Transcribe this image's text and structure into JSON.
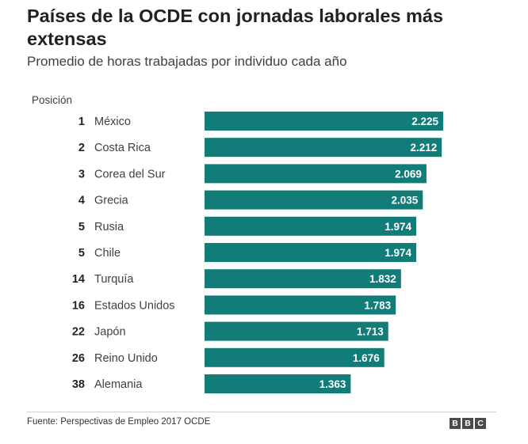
{
  "chart_data": {
    "type": "bar",
    "orientation": "horizontal",
    "title": "Países de la OCDE con jornadas laborales más extensas",
    "subtitle": "Promedio de horas trabajadas por individuo cada año",
    "column_header": "Posición",
    "rows": [
      {
        "rank": "1",
        "country": "México",
        "value": 2225,
        "label": "2.225"
      },
      {
        "rank": "2",
        "country": "Costa Rica",
        "value": 2212,
        "label": "2.212"
      },
      {
        "rank": "3",
        "country": "Corea del Sur",
        "value": 2069,
        "label": "2.069"
      },
      {
        "rank": "4",
        "country": "Grecia",
        "value": 2035,
        "label": "2.035"
      },
      {
        "rank": "5",
        "country": "Rusia",
        "value": 1974,
        "label": "1.974"
      },
      {
        "rank": "5",
        "country": "Chile",
        "value": 1974,
        "label": "1.974"
      },
      {
        "rank": "14",
        "country": "Turquía",
        "value": 1832,
        "label": "1.832"
      },
      {
        "rank": "16",
        "country": "Estados Unidos",
        "value": 1783,
        "label": "1.783"
      },
      {
        "rank": "22",
        "country": "Japón",
        "value": 1713,
        "label": "1.713"
      },
      {
        "rank": "26",
        "country": "Reino Unido",
        "value": 1676,
        "label": "1.676"
      },
      {
        "rank": "38",
        "country": "Alemania",
        "value": 1363,
        "label": "1.363"
      }
    ],
    "xlim": [
      0,
      2225
    ],
    "grid": false,
    "bar_color": "#127d78"
  },
  "footer": {
    "source": "Fuente: Perspectivas de Empleo 2017 OCDE",
    "logo": [
      "B",
      "B",
      "C"
    ]
  }
}
